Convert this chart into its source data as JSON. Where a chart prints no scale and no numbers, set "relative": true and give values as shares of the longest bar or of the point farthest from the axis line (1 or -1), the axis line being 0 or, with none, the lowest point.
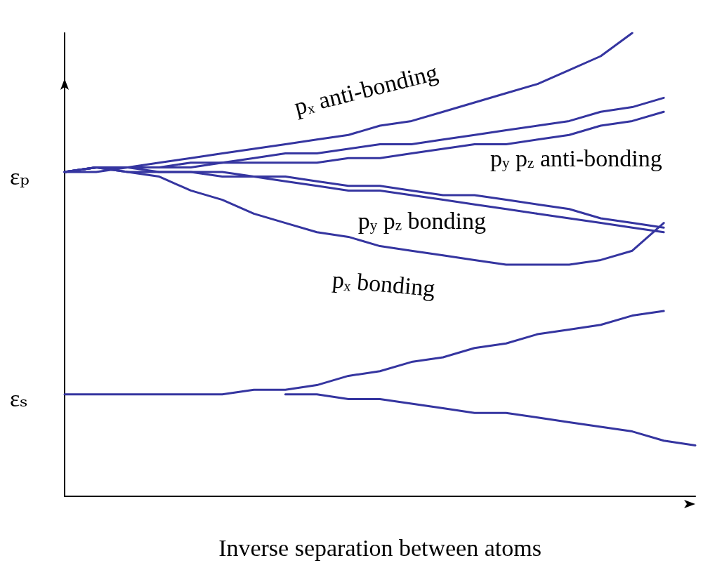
{
  "chart_data": {
    "type": "line",
    "relative": true,
    "xlabel": "Inverse separation between atoms",
    "categories": [
      null,
      null,
      null,
      null,
      null,
      null,
      null,
      null,
      null,
      null,
      null,
      null,
      null,
      null,
      null,
      null,
      null,
      null,
      null,
      null,
      null
    ],
    "series": [
      {
        "name": "pₓ anti-bonding",
        "color": "#3535a0",
        "values": [
          0.7,
          0.71,
          0.71,
          0.72,
          0.73,
          0.74,
          0.75,
          0.76,
          0.77,
          0.78,
          0.8,
          0.81,
          0.83,
          0.85,
          0.87,
          0.89,
          0.92,
          0.95,
          1.0,
          null,
          null
        ]
      },
      {
        "color": "#3535a0",
        "values": [
          0.7,
          0.71,
          0.71,
          0.71,
          0.72,
          0.72,
          0.73,
          0.74,
          0.74,
          0.75,
          0.76,
          0.76,
          0.77,
          0.78,
          0.79,
          0.8,
          0.81,
          0.83,
          0.84,
          0.86,
          null
        ]
      },
      {
        "name": "p$_{y}$ p$_{z}$ anti-bonding",
        "color": "#3535a0",
        "values": [
          0.7,
          0.7,
          0.71,
          0.71,
          0.71,
          0.72,
          0.72,
          0.72,
          0.72,
          0.73,
          0.73,
          0.74,
          0.75,
          0.76,
          0.76,
          0.77,
          0.78,
          0.8,
          0.81,
          0.83,
          null
        ]
      },
      {
        "name": "p$_{y}$ p$_{z}$ bonding",
        "color": "#3535a0",
        "values": [
          0.7,
          0.71,
          0.71,
          0.7,
          0.7,
          0.7,
          0.69,
          0.69,
          0.68,
          0.67,
          0.67,
          0.66,
          0.65,
          0.65,
          0.64,
          0.63,
          0.62,
          0.6,
          0.59,
          0.58,
          null
        ]
      },
      {
        "color": "#3535a0",
        "values": [
          0.7,
          0.71,
          0.7,
          0.7,
          0.7,
          0.69,
          0.69,
          0.68,
          0.67,
          0.66,
          0.66,
          0.65,
          0.64,
          0.63,
          0.62,
          0.61,
          0.6,
          0.59,
          0.58,
          0.57,
          null
        ]
      },
      {
        "name": "pₓ bonding",
        "color": "#3535a0",
        "values": [
          0.7,
          0.71,
          0.7,
          0.69,
          0.66,
          0.64,
          0.61,
          0.59,
          0.57,
          0.56,
          0.54,
          0.53,
          0.52,
          0.51,
          0.5,
          0.5,
          0.5,
          0.51,
          0.53,
          0.59,
          null
        ]
      },
      {
        "color": "#3535a0",
        "values": [
          0.22,
          0.22,
          0.22,
          0.22,
          0.22,
          0.22,
          0.23,
          0.23,
          0.24,
          0.26,
          0.27,
          0.29,
          0.3,
          0.32,
          0.33,
          0.35,
          0.36,
          0.37,
          0.39,
          0.4,
          null
        ]
      },
      {
        "color": "#3535a0",
        "values": [
          null,
          null,
          null,
          null,
          null,
          null,
          null,
          0.22,
          0.22,
          0.21,
          0.21,
          0.2,
          0.19,
          0.18,
          0.18,
          0.17,
          0.16,
          0.15,
          0.14,
          0.12,
          0.11
        ]
      }
    ],
    "annotations": [
      "εₚ",
      "εₛ"
    ]
  }
}
